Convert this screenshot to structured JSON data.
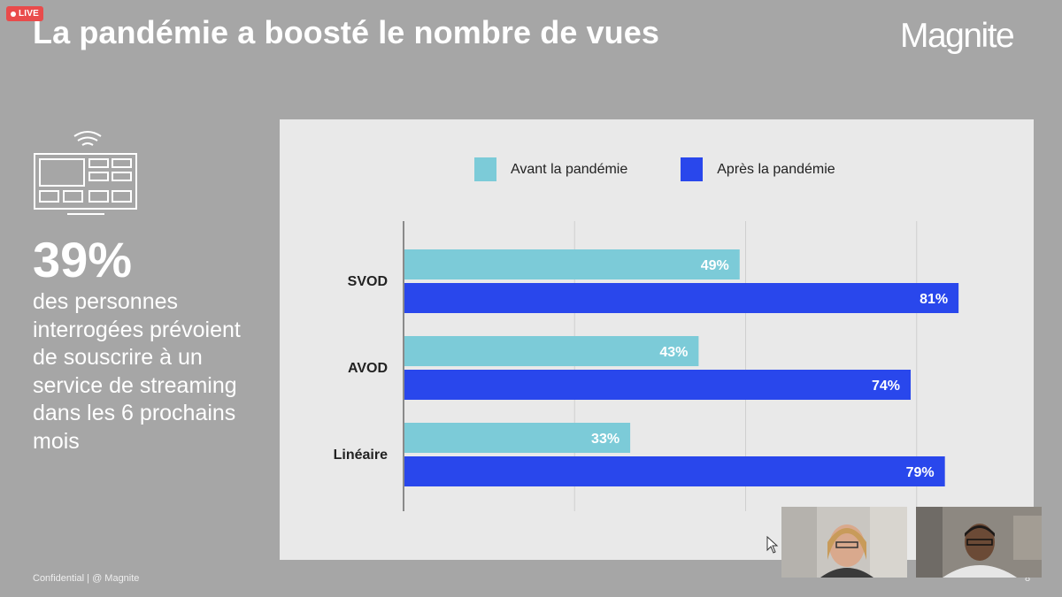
{
  "live_label": "LIVE",
  "slide": {
    "title": "La pandémie a boosté le nombre de vues",
    "logo": "Magnite",
    "stat_number": "39%",
    "stat_description": "des personnes interrogées prévoient de souscrire à un service de streaming dans les 6 prochains mois",
    "footer": "Confidential | @ Magnite",
    "page_number": "8",
    "icon": "tv-streaming-icon"
  },
  "colors": {
    "slide_bg": "#a6a6a6",
    "before": "#7ccbd8",
    "after": "#2947ec",
    "chart_bg": "#e9e9e9"
  },
  "chart_data": {
    "type": "bar",
    "orientation": "horizontal",
    "categories": [
      "SVOD",
      "AVOD",
      "Linéaire"
    ],
    "series": [
      {
        "name": "Avant la pandémie",
        "values": [
          49,
          43,
          33
        ],
        "labels": [
          "49%",
          "43%",
          "33%"
        ]
      },
      {
        "name": "Après la pandémie",
        "values": [
          81,
          74,
          79
        ],
        "labels": [
          "81%",
          "74%",
          "79%"
        ]
      }
    ],
    "xlim": [
      0,
      100
    ],
    "grid": true,
    "legend": "top"
  },
  "video_participants": [
    {
      "name": "participant-woman"
    },
    {
      "name": "participant-man"
    }
  ]
}
